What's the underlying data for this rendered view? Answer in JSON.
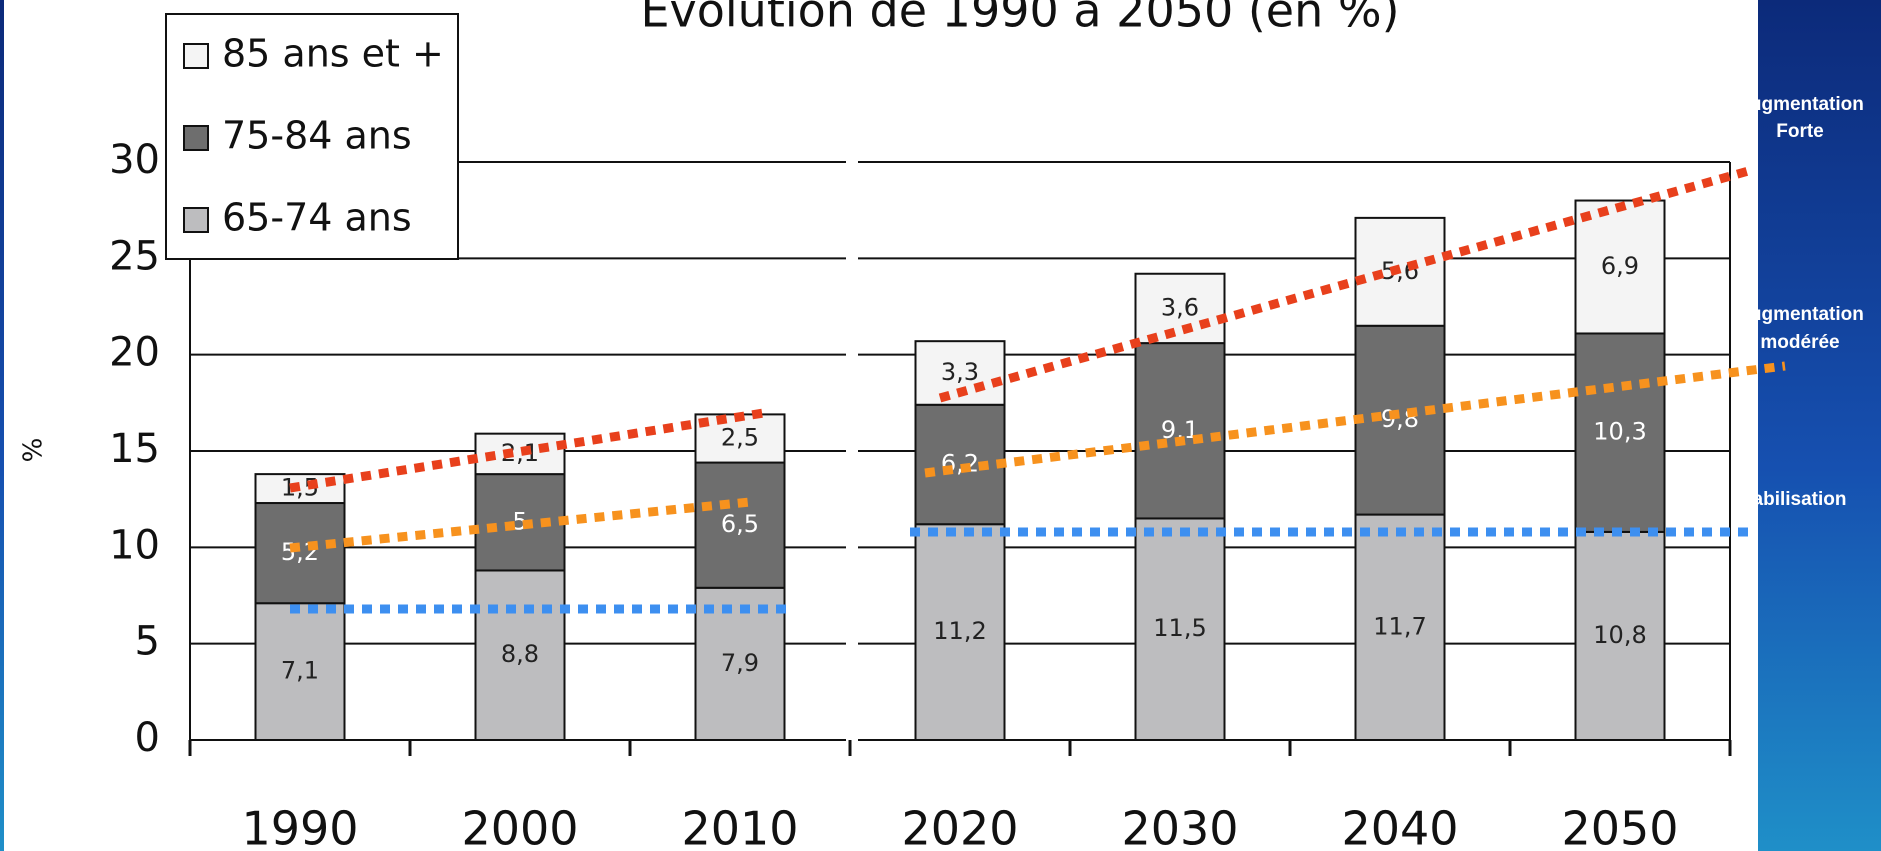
{
  "chart_data": {
    "type": "bar",
    "stacked": true,
    "title": "Evolution de 1990 à 2050 (en %)",
    "y_label": "%",
    "categories": [
      "1990",
      "2000",
      "2010",
      "2020",
      "2030",
      "2040",
      "2050"
    ],
    "series": [
      {
        "name": "65-74 ans",
        "color": "#bdbdbf",
        "label_color": "#222222",
        "values": [
          7.1,
          8.8,
          7.9,
          11.2,
          11.5,
          11.7,
          10.8
        ],
        "value_labels": [
          "7,1",
          "8,8",
          "7,9",
          "11,2",
          "11,5",
          "11,7",
          "10,8"
        ]
      },
      {
        "name": "75-84 ans",
        "color": "#6e6e6e",
        "label_color": "#ffffff",
        "values": [
          5.2,
          5,
          6.5,
          6.2,
          9.1,
          9.8,
          10.3
        ],
        "value_labels": [
          "5,2",
          "5",
          "6,5",
          "6,2",
          "9,1",
          "9,8",
          "10,3"
        ]
      },
      {
        "name": "85 ans et +",
        "color": "#f4f4f4",
        "label_color": "#222222",
        "values": [
          1.5,
          2.1,
          2.5,
          3.3,
          3.6,
          5.6,
          6.9
        ],
        "value_labels": [
          "1,5",
          "2,1",
          "2,5",
          "3,3",
          "3,6",
          "5,6",
          "6,9"
        ]
      }
    ],
    "ylim": [
      0,
      30
    ],
    "yticks": [
      0,
      5,
      10,
      15,
      20,
      25,
      30
    ],
    "grid": true,
    "legend": "upper left",
    "annotations": [
      "Augmentation",
      "Forte",
      "Augmentation",
      "modérée",
      "Stabilisation"
    ]
  }
}
